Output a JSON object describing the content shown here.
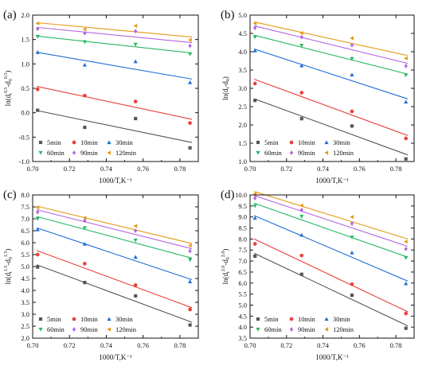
{
  "colors": {
    "5min": "#555555",
    "10min": "#e8413a",
    "30min": "#1f6fd6",
    "60min": "#27b863",
    "90min": "#b766e0",
    "120min": "#e49a14"
  },
  "marker_shapes": {
    "5min": "square",
    "10min": "circle",
    "30min": "triangle-up",
    "60min": "triangle-down",
    "90min": "diamond",
    "120min": "triangle-left"
  },
  "chart_data": [
    {
      "type": "scatter",
      "panel_label": "(a)",
      "xlabel": "1000/T,K⁻¹",
      "ylabel": {
        "prefix": "ln(d",
        "sub1": "t",
        "sup1": "0.5",
        "mid": "-d",
        "sub2": "0",
        "sup2": "0.5",
        "suffix": ")"
      },
      "xlim": [
        0.7,
        0.79
      ],
      "ylim": [
        -1.0,
        2.0
      ],
      "xticks": [
        "0.70",
        "0.72",
        "0.74",
        "0.76",
        "0.78"
      ],
      "yticks": [
        "-1.0",
        "-0.5",
        "0.0",
        "0.5",
        "1.0",
        "1.5",
        "2.0"
      ],
      "x": [
        0.7027,
        0.7283,
        0.7559,
        0.7855
      ],
      "legend_location": "bottom-left",
      "series": [
        {
          "name": "5min",
          "values": [
            0.05,
            -0.3,
            -0.12,
            -0.72
          ]
        },
        {
          "name": "10min",
          "values": [
            0.48,
            0.35,
            0.23,
            -0.21
          ]
        },
        {
          "name": "30min",
          "values": [
            1.24,
            0.98,
            1.05,
            0.62
          ]
        },
        {
          "name": "60min",
          "values": [
            1.56,
            1.45,
            1.4,
            1.2
          ]
        },
        {
          "name": "90min",
          "values": [
            1.72,
            1.63,
            1.67,
            1.37
          ]
        },
        {
          "name": "120min",
          "values": [
            1.83,
            1.71,
            1.78,
            1.49
          ]
        }
      ]
    },
    {
      "type": "scatter",
      "panel_label": "(b)",
      "xlabel": "1000/T,K⁻¹",
      "ylabel": {
        "prefix": "ln(d",
        "sub1": "t",
        "sup1": "",
        "mid": "-d",
        "sub2": "0",
        "sup2": "",
        "suffix": ")"
      },
      "xlim": [
        0.7,
        0.79
      ],
      "ylim": [
        1.0,
        5.0
      ],
      "xticks": [
        "0.70",
        "0.72",
        "0.74",
        "0.76",
        "0.78"
      ],
      "yticks": [
        "1.0",
        "1.5",
        "2.0",
        "2.5",
        "3.0",
        "3.5",
        "4.0",
        "4.5",
        "5.0"
      ],
      "x": [
        0.7027,
        0.7283,
        0.7559,
        0.7855
      ],
      "legend_location": "bottom-left",
      "series": [
        {
          "name": "5min",
          "values": [
            2.67,
            2.17,
            1.97,
            1.07
          ]
        },
        {
          "name": "10min",
          "values": [
            3.13,
            2.88,
            2.37,
            1.63
          ]
        },
        {
          "name": "30min",
          "values": [
            4.03,
            3.62,
            3.37,
            2.63
          ]
        },
        {
          "name": "60min",
          "values": [
            4.4,
            4.17,
            3.81,
            3.36
          ]
        },
        {
          "name": "90min",
          "values": [
            4.65,
            4.4,
            4.18,
            3.61
          ]
        },
        {
          "name": "120min",
          "values": [
            4.77,
            4.51,
            4.37,
            3.82
          ]
        }
      ]
    },
    {
      "type": "scatter",
      "panel_label": "(c)",
      "xlabel": "1000/T,K⁻¹",
      "ylabel": {
        "prefix": "ln(d",
        "sub1": "t",
        "sup1": "1.5",
        "mid": "-d",
        "sub2": "0",
        "sup2": "1.5",
        "suffix": ")"
      },
      "xlim": [
        0.7,
        0.79
      ],
      "ylim": [
        2.0,
        8.0
      ],
      "xticks": [
        "0.70",
        "0.72",
        "0.74",
        "0.76",
        "0.78"
      ],
      "yticks": [
        "2.0",
        "2.5",
        "3.0",
        "3.5",
        "4.0",
        "4.5",
        "5.0",
        "5.5",
        "6.0",
        "6.5",
        "7.0",
        "7.5",
        "8.0"
      ],
      "x": [
        0.7027,
        0.7283,
        0.7559,
        0.7855
      ],
      "legend_location": "bottom-left",
      "series": [
        {
          "name": "5min",
          "values": [
            4.98,
            4.33,
            3.77,
            2.55
          ]
        },
        {
          "name": "10min",
          "values": [
            5.5,
            5.12,
            4.22,
            3.2
          ]
        },
        {
          "name": "30min",
          "values": [
            6.55,
            5.95,
            5.4,
            4.37
          ]
        },
        {
          "name": "60min",
          "values": [
            7.0,
            6.62,
            6.1,
            5.28
          ]
        },
        {
          "name": "90min",
          "values": [
            7.28,
            6.92,
            6.5,
            5.65
          ]
        },
        {
          "name": "120min",
          "values": [
            7.47,
            7.04,
            6.7,
            5.88
          ]
        }
      ]
    },
    {
      "type": "scatter",
      "panel_label": "(d)",
      "xlabel": "1000/T,K⁻¹",
      "ylabel": {
        "prefix": "ln(d",
        "sub1": "t",
        "sup1": "2.0",
        "mid": "-d",
        "sub2": "0",
        "sup2": "2.0",
        "suffix": ")"
      },
      "xlim": [
        0.7,
        0.79
      ],
      "ylim": [
        3.5,
        10.0
      ],
      "xticks": [
        "0.70",
        "0.72",
        "0.74",
        "0.76",
        "0.78"
      ],
      "yticks": [
        "3.5",
        "4.0",
        "4.5",
        "5.0",
        "5.5",
        "6.0",
        "6.5",
        "7.0",
        "7.5",
        "8.0",
        "8.5",
        "9.0",
        "9.5",
        "10.0"
      ],
      "x": [
        0.7027,
        0.7283,
        0.7559,
        0.7855
      ],
      "legend_location": "bottom-left",
      "series": [
        {
          "name": "5min",
          "values": [
            7.22,
            6.4,
            5.45,
            3.95
          ]
        },
        {
          "name": "10min",
          "values": [
            7.78,
            7.25,
            5.95,
            4.62
          ]
        },
        {
          "name": "30min",
          "values": [
            8.95,
            8.18,
            7.38,
            5.98
          ]
        },
        {
          "name": "60min",
          "values": [
            9.5,
            9.02,
            8.08,
            7.15
          ]
        },
        {
          "name": "90min",
          "values": [
            9.85,
            9.32,
            8.7,
            7.55
          ]
        },
        {
          "name": "120min",
          "values": [
            10.05,
            9.52,
            9.0,
            7.88
          ]
        }
      ]
    }
  ]
}
